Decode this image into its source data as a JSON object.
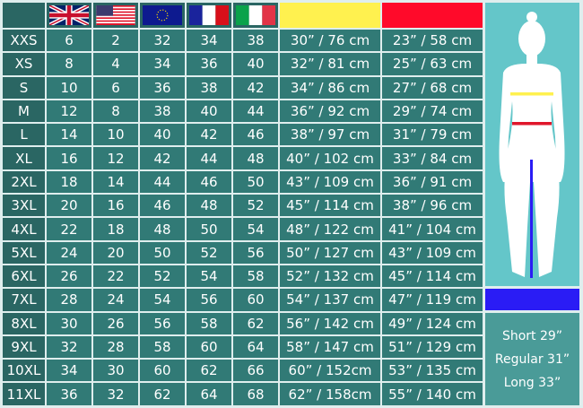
{
  "header": {
    "flags": [
      "uk-flag",
      "us-flag",
      "eu-flag",
      "france-flag",
      "italy-flag"
    ],
    "bust_color": "#fff14f",
    "waist_color": "#ff0a2a",
    "inseam_color": "#2a1cf5"
  },
  "rows": [
    [
      "XXS",
      "6",
      "2",
      "32",
      "34",
      "38",
      "30” / 76 cm",
      "23” / 58 cm"
    ],
    [
      "XS",
      "8",
      "4",
      "34",
      "36",
      "40",
      "32” / 81 cm",
      "25” / 63 cm"
    ],
    [
      "S",
      "10",
      "6",
      "36",
      "38",
      "42",
      "34” / 86 cm",
      "27” / 68 cm"
    ],
    [
      "M",
      "12",
      "8",
      "38",
      "40",
      "44",
      "36” / 92 cm",
      "29” / 74 cm"
    ],
    [
      "L",
      "14",
      "10",
      "40",
      "42",
      "46",
      "38” / 97 cm",
      "31” / 79 cm"
    ],
    [
      "XL",
      "16",
      "12",
      "42",
      "44",
      "48",
      "40” / 102 cm",
      "33” / 84 cm"
    ],
    [
      "2XL",
      "18",
      "14",
      "44",
      "46",
      "50",
      "43” / 109 cm",
      "36” / 91 cm"
    ],
    [
      "3XL",
      "20",
      "16",
      "46",
      "48",
      "52",
      "45” / 114 cm",
      "38” / 96 cm"
    ],
    [
      "4XL",
      "22",
      "18",
      "48",
      "50",
      "54",
      "48” / 122 cm",
      "41” / 104 cm"
    ],
    [
      "5XL",
      "24",
      "20",
      "50",
      "52",
      "56",
      "50” / 127 cm",
      "43” / 109 cm"
    ],
    [
      "6XL",
      "26",
      "22",
      "52",
      "54",
      "58",
      "52” / 132 cm",
      "45” / 114 cm"
    ],
    [
      "7XL",
      "28",
      "24",
      "54",
      "56",
      "60",
      "54” / 137 cm",
      "47” / 119 cm"
    ],
    [
      "8XL",
      "30",
      "26",
      "56",
      "58",
      "62",
      "56” / 142 cm",
      "49” / 124 cm"
    ],
    [
      "9XL",
      "32",
      "28",
      "58",
      "60",
      "64",
      "58” / 147 cm",
      "51” / 129 cm"
    ],
    [
      "10XL",
      "34",
      "30",
      "60",
      "62",
      "66",
      "60” / 152cm",
      "53” / 135 cm"
    ],
    [
      "11XL",
      "36",
      "32",
      "62",
      "64",
      "68",
      "62” / 158cm",
      "55” / 140 cm"
    ]
  ],
  "inseam": [
    "Short 29”",
    "Regular 31”",
    "Long 33”"
  ]
}
